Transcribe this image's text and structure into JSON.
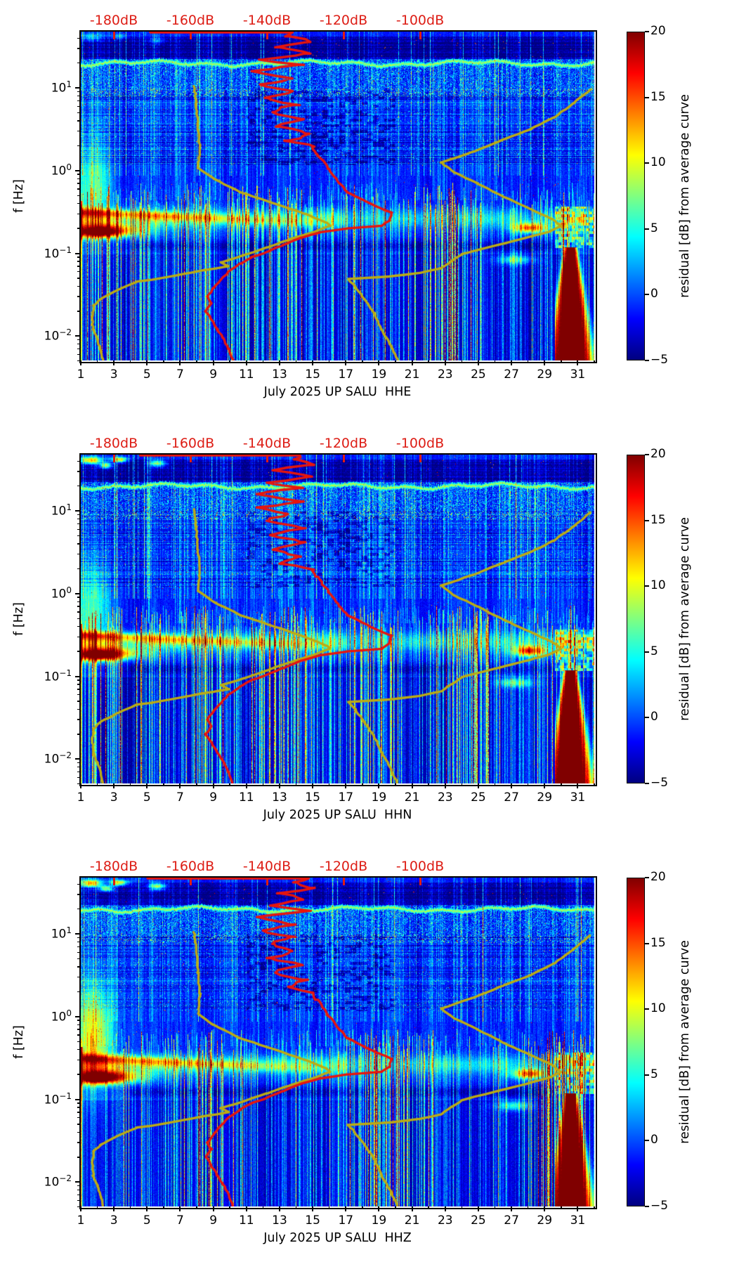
{
  "figure": {
    "background": "#ffffff",
    "ylabel": "f [Hz]",
    "top_axis_labels": [
      "-180dB",
      "-160dB",
      "-140dB",
      "-120dB",
      "-100dB"
    ],
    "top_axis_color": "#dd1d15",
    "x_tick_labels": [
      "1",
      "3",
      "5",
      "7",
      "9",
      "11",
      "13",
      "15",
      "17",
      "19",
      "21",
      "23",
      "25",
      "27",
      "29",
      "31"
    ],
    "y_tick_exponents": [
      "1",
      "0",
      "−1",
      "−2"
    ],
    "colorbar": {
      "label": "residual [dB] from average curve",
      "tick_labels": [
        "20",
        "15",
        "10",
        "5",
        "0",
        "−5"
      ],
      "range": [
        -5,
        20
      ],
      "colormap": "jet"
    }
  },
  "panels": [
    {
      "channel": "HHE",
      "xlabel": "July 2025 UP SALU  HHE"
    },
    {
      "channel": "HHN",
      "xlabel": "July 2025 UP SALU  HHN"
    },
    {
      "channel": "HHZ",
      "xlabel": "July 2025 UP SALU  HHZ"
    }
  ],
  "chart_data": {
    "charts": [
      {
        "type": "heatmap",
        "subtype": "spectrogram",
        "title": "July 2025 UP SALU  HHE",
        "xlabel": "July 2025 UP SALU  HHE",
        "ylabel": "f [Hz]",
        "x_axis": {
          "unit": "day of July 2025",
          "ticks": [
            1,
            3,
            5,
            7,
            9,
            11,
            13,
            15,
            17,
            19,
            21,
            23,
            25,
            27,
            29,
            31
          ],
          "range": [
            1,
            32
          ]
        },
        "y_axis": {
          "unit": "Hz",
          "scale": "log",
          "ticks": [
            10,
            1,
            0.1,
            0.01
          ],
          "range": [
            0.005,
            48
          ]
        },
        "top_axis": {
          "unit": "dB",
          "ticks": [
            -180,
            -160,
            -140,
            -120,
            -100
          ],
          "color": "red"
        },
        "colorbar": {
          "label": "residual [dB] from average curve",
          "ticks": [
            20,
            15,
            10,
            5,
            0,
            -5
          ],
          "range": [
            -5,
            20
          ],
          "colormap": "jet"
        },
        "notable_features": [
          "persistent narrowband signal near 20 Hz (green wavy line)",
          "dark band 25-40 Hz",
          "microseism band 0.2-0.35 Hz with strong red blob days 1-6",
          "orange blob days 27-29 at 0.2 Hz",
          "dark red high-noise blob days 30-31 below 0.1 Hz",
          "many vertical noise stripes below 0.5 Hz"
        ],
        "render_hints": {
          "seed": 7,
          "top_left_blob_amp": 6,
          "low_left_cloud_amp": 7
        }
      },
      {
        "type": "heatmap",
        "subtype": "spectrogram",
        "title": "July 2025 UP SALU  HHN",
        "xlabel": "July 2025 UP SALU  HHN",
        "ylabel": "f [Hz]",
        "x_axis": {
          "unit": "day of July 2025",
          "ticks": [
            1,
            3,
            5,
            7,
            9,
            11,
            13,
            15,
            17,
            19,
            21,
            23,
            25,
            27,
            29,
            31
          ],
          "range": [
            1,
            32
          ]
        },
        "y_axis": {
          "unit": "Hz",
          "scale": "log",
          "ticks": [
            10,
            1,
            0.1,
            0.01
          ],
          "range": [
            0.005,
            48
          ]
        },
        "top_axis": {
          "unit": "dB",
          "ticks": [
            -180,
            -160,
            -140,
            -120,
            -100
          ],
          "color": "red"
        },
        "colorbar": {
          "label": "residual [dB] from average curve",
          "ticks": [
            20,
            15,
            10,
            5,
            0,
            -5
          ],
          "range": [
            -5,
            20
          ],
          "colormap": "jet"
        },
        "notable_features": [
          "orange patches days 1-5 at 30-45 Hz",
          "green line near 20 Hz",
          "red microseism blob days 1-6",
          "orange blob days 27-29",
          "dark red blob days 30-31 at low frequency"
        ],
        "render_hints": {
          "seed": 13,
          "top_left_blob_amp": 15,
          "low_left_cloud_amp": 7
        }
      },
      {
        "type": "heatmap",
        "subtype": "spectrogram",
        "title": "July 2025 UP SALU  HHZ",
        "xlabel": "July 2025 UP SALU  HHZ",
        "ylabel": "f [Hz]",
        "x_axis": {
          "unit": "day of July 2025",
          "ticks": [
            1,
            3,
            5,
            7,
            9,
            11,
            13,
            15,
            17,
            19,
            21,
            23,
            25,
            27,
            29,
            31
          ],
          "range": [
            1,
            32
          ]
        },
        "y_axis": {
          "unit": "Hz",
          "scale": "log",
          "ticks": [
            10,
            1,
            0.1,
            0.01
          ],
          "range": [
            0.005,
            48
          ]
        },
        "top_axis": {
          "unit": "dB",
          "ticks": [
            -180,
            -160,
            -140,
            -120,
            -100
          ],
          "color": "red"
        },
        "colorbar": {
          "label": "residual [dB] from average curve",
          "ticks": [
            20,
            15,
            10,
            5,
            0,
            -5
          ],
          "range": [
            -5,
            20
          ],
          "colormap": "jet"
        },
        "notable_features": [
          "orange patches days 1-4 at 30-45 Hz",
          "bright green-yellow cloud days 1-3 at 0.3-2 Hz",
          "green line near 20 Hz",
          "red microseism blob days 1-6",
          "dark red blob days 30-31 at low frequency"
        ],
        "render_hints": {
          "seed": 21,
          "top_left_blob_amp": 15,
          "low_left_cloud_amp": 11
        }
      }
    ],
    "shared_overlay_curves": [
      {
        "name": "average-spectrum-curve",
        "color": "#e8150c",
        "x_scale": "top_axis_dB",
        "points_db_hz": [
          [
            -172,
            47
          ],
          [
            -150,
            47
          ],
          [
            -131,
            47
          ],
          [
            -134,
            42
          ],
          [
            -128,
            36
          ],
          [
            -138,
            31
          ],
          [
            -129,
            26
          ],
          [
            -141,
            22
          ],
          [
            -131,
            19
          ],
          [
            -143,
            16
          ],
          [
            -132,
            13
          ],
          [
            -142,
            11
          ],
          [
            -133,
            9.2
          ],
          [
            -140,
            7.6
          ],
          [
            -132,
            6.2
          ],
          [
            -139,
            5.1
          ],
          [
            -131,
            4.2
          ],
          [
            -137,
            3.4
          ],
          [
            -130,
            2.8
          ],
          [
            -135,
            2.3
          ],
          [
            -128,
            1.95
          ],
          [
            -127,
            1.6
          ],
          [
            -124,
            1.05
          ],
          [
            -121,
            0.7
          ],
          [
            -119,
            0.55
          ],
          [
            -113,
            0.4
          ],
          [
            -107.5,
            0.31
          ],
          [
            -108,
            0.25
          ],
          [
            -110,
            0.215
          ],
          [
            -119,
            0.2
          ],
          [
            -126,
            0.18
          ],
          [
            -131,
            0.155
          ],
          [
            -136,
            0.125
          ],
          [
            -141,
            0.1
          ],
          [
            -144,
            0.09
          ],
          [
            -147,
            0.075
          ],
          [
            -150,
            0.06
          ],
          [
            -152,
            0.048
          ],
          [
            -154,
            0.038
          ],
          [
            -155.5,
            0.03
          ],
          [
            -154.5,
            0.025
          ],
          [
            -156,
            0.02
          ],
          [
            -154.5,
            0.016
          ],
          [
            -153,
            0.012
          ],
          [
            -151.5,
            0.0095
          ],
          [
            -150,
            0.007
          ],
          [
            -149,
            0.0052
          ]
        ]
      },
      {
        "name": "quiet-reference-curve",
        "color": "#bcab13",
        "x_scale": "top_axis_dB",
        "points_db_hz": [
          [
            -159,
            10.5
          ],
          [
            -158.5,
            6.5
          ],
          [
            -158,
            3.4
          ],
          [
            -157.5,
            1.9
          ],
          [
            -158,
            1.08
          ],
          [
            -154,
            0.8
          ],
          [
            -147,
            0.55
          ],
          [
            -138,
            0.4
          ],
          [
            -130,
            0.3
          ],
          [
            -124.5,
            0.235
          ],
          [
            -123.5,
            0.215
          ],
          [
            -128,
            0.18
          ],
          [
            -134,
            0.148
          ],
          [
            -140,
            0.118
          ],
          [
            -146,
            0.095
          ],
          [
            -152,
            0.078
          ],
          [
            -150,
            0.07
          ],
          [
            -153.5,
            0.0655
          ],
          [
            -157,
            0.062
          ],
          [
            -163,
            0.055
          ],
          [
            -170,
            0.048
          ],
          [
            -174,
            0.0455
          ],
          [
            -179,
            0.036
          ],
          [
            -183.5,
            0.028
          ],
          [
            -185.2,
            0.0235
          ],
          [
            -185.6,
            0.017
          ],
          [
            -185.4,
            0.012
          ],
          [
            -184.3,
            0.009
          ],
          [
            -183.3,
            0.0065
          ],
          [
            -182.8,
            0.0052
          ]
        ]
      },
      {
        "name": "noisy-reference-curve",
        "color": "#bcab13",
        "x_scale": "top_axis_dB",
        "points_db_hz": [
          [
            -55.5,
            9.6
          ],
          [
            -60,
            6.5
          ],
          [
            -65,
            4.4
          ],
          [
            -71,
            3.2
          ],
          [
            -78,
            2.4
          ],
          [
            -86,
            1.7
          ],
          [
            -94.5,
            1.25
          ],
          [
            -91,
            0.95
          ],
          [
            -85,
            0.7
          ],
          [
            -78,
            0.48
          ],
          [
            -71,
            0.34
          ],
          [
            -65.5,
            0.26
          ],
          [
            -63.2,
            0.215
          ],
          [
            -66,
            0.185
          ],
          [
            -72,
            0.155
          ],
          [
            -80,
            0.125
          ],
          [
            -86,
            0.107
          ],
          [
            -89,
            0.098
          ],
          [
            -91.5,
            0.082
          ],
          [
            -94.5,
            0.066
          ],
          [
            -100,
            0.058
          ],
          [
            -108,
            0.0525
          ],
          [
            -118.8,
            0.049
          ],
          [
            -117,
            0.04
          ],
          [
            -114.5,
            0.028
          ],
          [
            -112,
            0.019
          ],
          [
            -110,
            0.012
          ],
          [
            -107.5,
            0.0075
          ],
          [
            -106,
            0.0052
          ]
        ]
      }
    ]
  }
}
